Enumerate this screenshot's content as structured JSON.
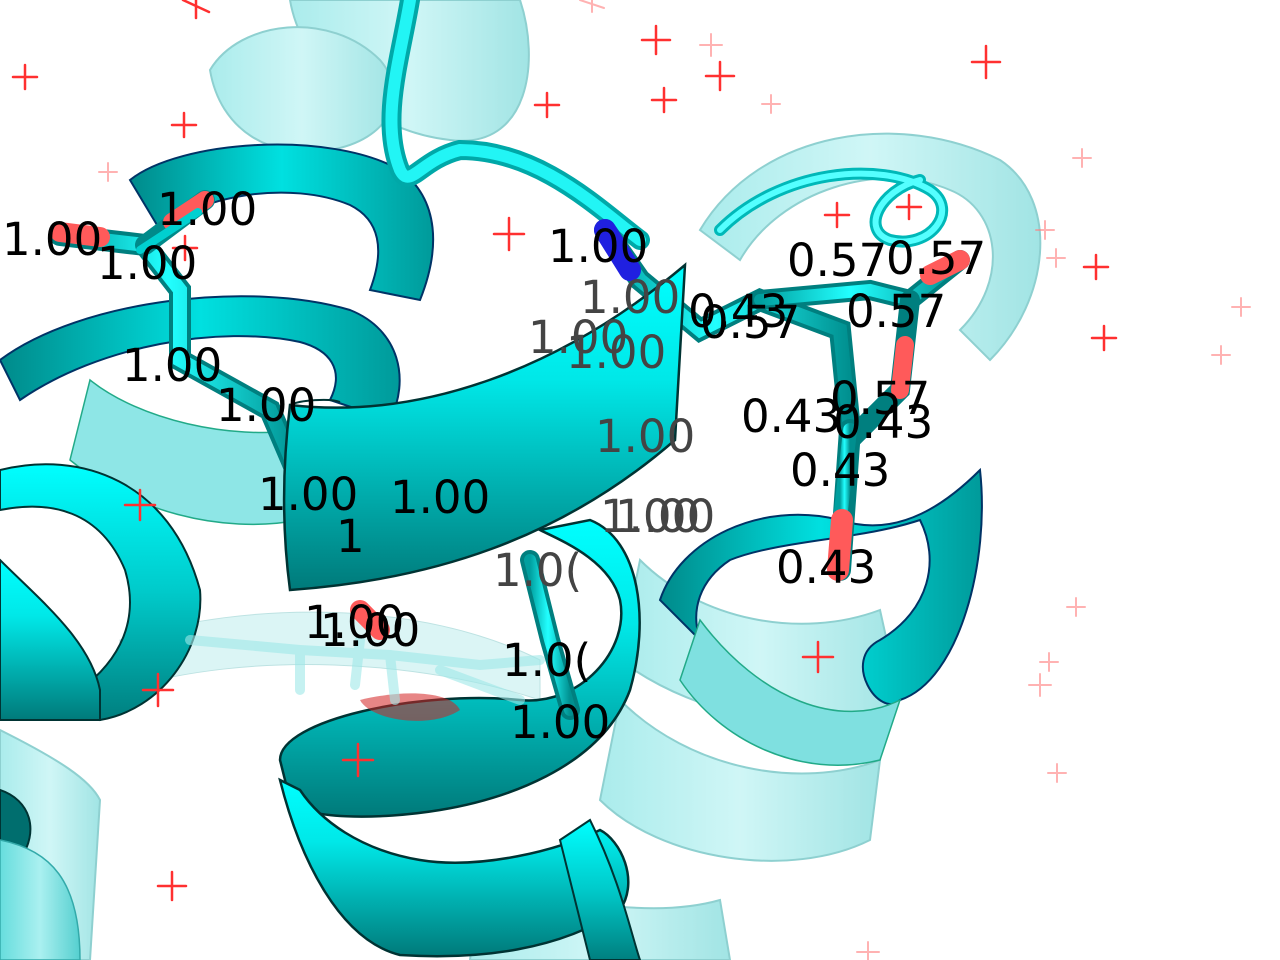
{
  "viewer": {
    "background": "#ffffff",
    "cartoon_color": "#00e5e5",
    "oxygen_color": "#ff4d4d",
    "nitrogen_color": "#2222ee",
    "water_color": "#ff3333"
  },
  "labels": [
    {
      "id": "l-ring1-o",
      "text": "1.00"
    },
    {
      "id": "l-ring1-c",
      "text": "1.00"
    },
    {
      "id": "l-ring1-o2",
      "text": "1.00"
    },
    {
      "id": "l-chain-a",
      "text": "1.00"
    },
    {
      "id": "l-chain-b",
      "text": "1.00"
    },
    {
      "id": "l-n-atom",
      "text": "1.00"
    },
    {
      "id": "l-helix",
      "text": "1.00"
    },
    {
      "id": "l-hidden-1",
      "text": "1.00"
    },
    {
      "id": "l-hidden-2",
      "text": "1.00"
    },
    {
      "id": "l-hidden-3",
      "text": "1.00"
    },
    {
      "id": "l-hidden-4",
      "text": "1.00"
    },
    {
      "id": "l-hidden-5",
      "text": "1.00"
    },
    {
      "id": "l-hidden-6",
      "text": "1.00"
    },
    {
      "id": "l-bot-1",
      "text": "1.00"
    },
    {
      "id": "l-bot-2",
      "text": "1.00"
    },
    {
      "id": "l-bot-3",
      "text": "1.00"
    },
    {
      "id": "l-bot-4",
      "text": "1.0("
    },
    {
      "id": "l-bot-5",
      "text": "1.0("
    },
    {
      "id": "l-bot-6",
      "text": "1"
    },
    {
      "id": "l-side-1",
      "text": "0.57"
    },
    {
      "id": "l-side-2",
      "text": "0.57"
    },
    {
      "id": "l-side-3",
      "text": "0.57"
    },
    {
      "id": "l-side-4",
      "text": "0.43"
    },
    {
      "id": "l-side-5",
      "text": "0.57"
    },
    {
      "id": "l-side-6",
      "text": "0.43"
    },
    {
      "id": "l-side-7",
      "text": "0.57"
    },
    {
      "id": "l-side-8",
      "text": "0.43"
    },
    {
      "id": "l-side-9",
      "text": "0.43"
    },
    {
      "id": "l-side-10",
      "text": "0.43"
    }
  ]
}
